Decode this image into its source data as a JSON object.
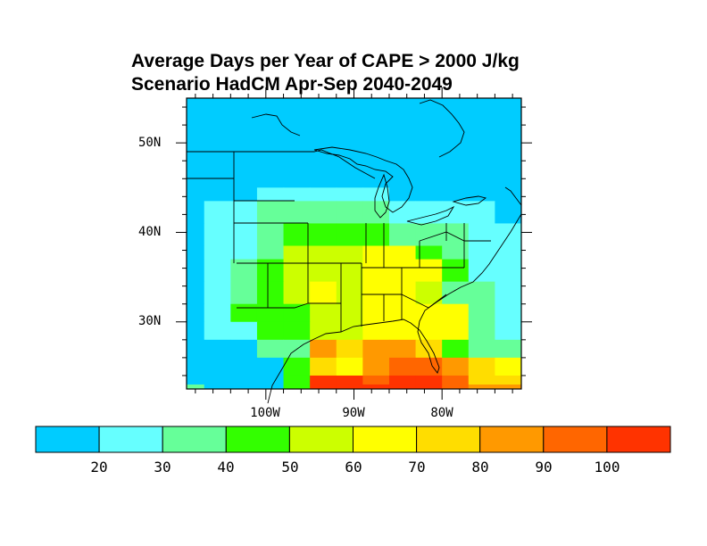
{
  "title": "Average Days per Year of CAPE > 2000 J/kg",
  "subtitle": "Scenario HadCM Apr-Sep 2040-2049",
  "lat_labels": [
    "50N",
    "40N",
    "30N"
  ],
  "lon_labels": [
    "100W",
    "90W",
    "80W"
  ],
  "colorbar": {
    "tick_labels": [
      "20",
      "30",
      "40",
      "50",
      "60",
      "70",
      "80",
      "90",
      "100"
    ],
    "colors": [
      "#00ccff",
      "#66ffff",
      "#66ff99",
      "#33ff00",
      "#ccff00",
      "#ffff00",
      "#ffdd00",
      "#ff9900",
      "#ff6600",
      "#ff3300"
    ]
  },
  "chart_data": {
    "type": "heatmap",
    "title": "Average Days per Year of CAPE > 2000 J/kg",
    "subtitle": "Scenario HadCM Apr-Sep 2040-2049",
    "levels": [
      20,
      30,
      40,
      50,
      60,
      70,
      80,
      90,
      100
    ],
    "lon_range": [
      -109,
      -71
    ],
    "lat_range": [
      22.5,
      55
    ],
    "lon_ticks": [
      -100,
      -90,
      -80
    ],
    "lat_ticks": [
      50,
      40,
      30
    ],
    "grid_lon_edges": [
      -109,
      -107,
      -104,
      -101,
      -98,
      -95,
      -92,
      -89,
      -86,
      -83,
      -80,
      -77,
      -74,
      -71
    ],
    "grid_lat_edges": [
      55,
      49,
      45,
      43.5,
      41,
      38.5,
      37,
      34.5,
      32,
      30,
      28,
      26,
      24,
      23,
      22.5
    ],
    "grid_class": [
      [
        0,
        0,
        0,
        0,
        0,
        0,
        0,
        0,
        0,
        0,
        0,
        0,
        0
      ],
      [
        0,
        0,
        0,
        0,
        0,
        0,
        0,
        0,
        0,
        0,
        0,
        0,
        0
      ],
      [
        0,
        0,
        0,
        1,
        1,
        1,
        1,
        1,
        0,
        0,
        0,
        0,
        0
      ],
      [
        0,
        1,
        1,
        2,
        2,
        2,
        2,
        2,
        1,
        1,
        1,
        1,
        0
      ],
      [
        0,
        1,
        1,
        2,
        3,
        3,
        3,
        3,
        2,
        2,
        2,
        1,
        1
      ],
      [
        0,
        1,
        1,
        2,
        4,
        4,
        4,
        5,
        5,
        3,
        2,
        1,
        1
      ],
      [
        0,
        1,
        2,
        3,
        4,
        4,
        4,
        5,
        5,
        5,
        3,
        1,
        1
      ],
      [
        0,
        1,
        2,
        3,
        4,
        5,
        4,
        5,
        5,
        4,
        2,
        2,
        1
      ],
      [
        0,
        1,
        3,
        3,
        3,
        4,
        4,
        5,
        5,
        5,
        5,
        2,
        1
      ],
      [
        0,
        1,
        1,
        3,
        3,
        4,
        4,
        5,
        5,
        5,
        5,
        2,
        1
      ],
      [
        0,
        0,
        0,
        2,
        2,
        7,
        6,
        7,
        7,
        6,
        3,
        2,
        2
      ],
      [
        0,
        0,
        0,
        0,
        3,
        6,
        5,
        7,
        8,
        8,
        7,
        6,
        5
      ],
      [
        0,
        0,
        0,
        0,
        3,
        9,
        9,
        8,
        9,
        9,
        8,
        6,
        6
      ],
      [
        2,
        0,
        0,
        0,
        3,
        9,
        9,
        9,
        9,
        9,
        8,
        7,
        7
      ]
    ]
  }
}
